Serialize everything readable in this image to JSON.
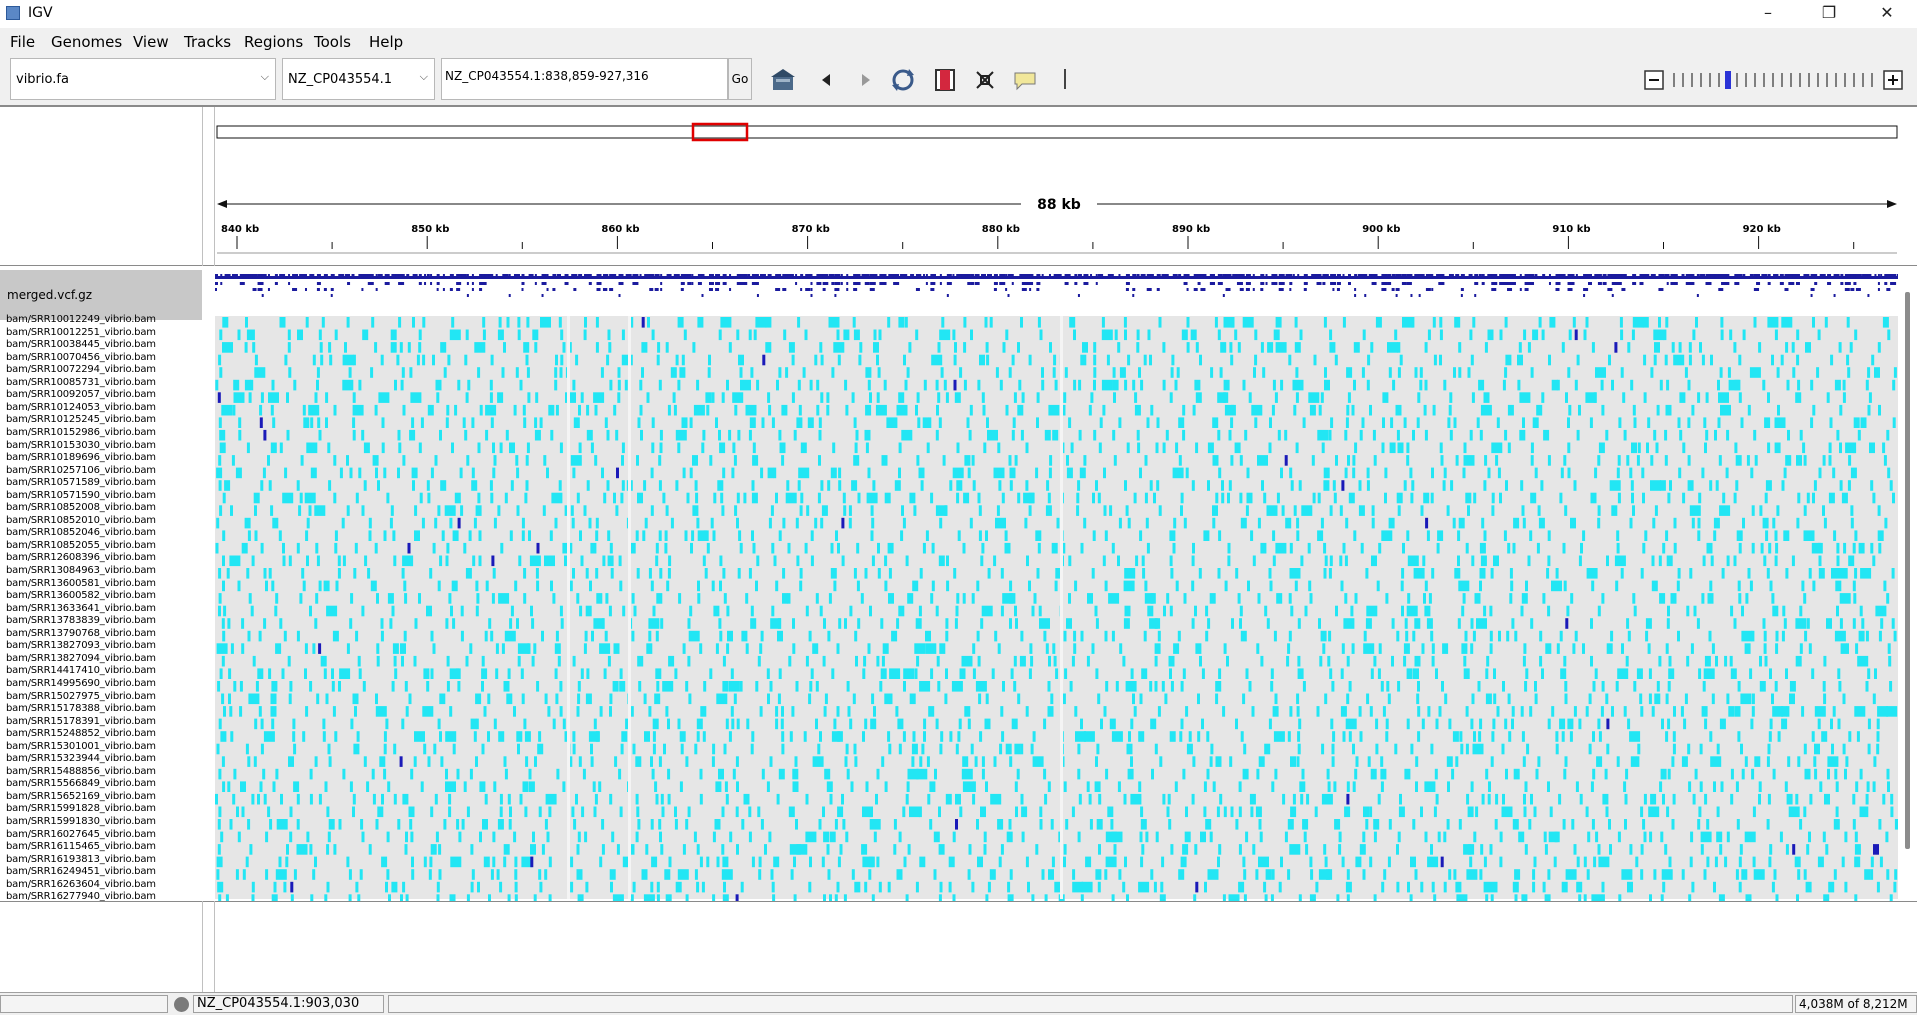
{
  "window": {
    "app_title": "IGV",
    "minimize": "–",
    "maximize": "❐",
    "close": "✕"
  },
  "menu": [
    "File",
    "Genomes",
    "View",
    "Tracks",
    "Regions",
    "Tools",
    "Help"
  ],
  "toolbar": {
    "genome": "vibrio.fa",
    "chromosome": "NZ_CP043554.1",
    "locus": "NZ_CP043554.1:838,859-927,316",
    "go_label": "Go",
    "icons": [
      "home-icon",
      "back-icon",
      "forward-icon",
      "refresh-icon",
      "region-of-interest-icon",
      "resize-icon",
      "popup-text-icon"
    ],
    "zoom_level": 0.28
  },
  "ruler": {
    "span_label": "88 kb",
    "ticks": [
      "840 kb",
      "850 kb",
      "860 kb",
      "870 kb",
      "880 kb",
      "890 kb",
      "900 kb",
      "910 kb",
      "920 kb"
    ]
  },
  "tracks": {
    "vcf_name": "merged.vcf.gz",
    "samples": [
      "bam/SRR10012249_vibrio.bam",
      "bam/SRR10012251_vibrio.bam",
      "bam/SRR10038445_vibrio.bam",
      "bam/SRR10070456_vibrio.bam",
      "bam/SRR10072294_vibrio.bam",
      "bam/SRR10085731_vibrio.bam",
      "bam/SRR10092057_vibrio.bam",
      "bam/SRR10124053_vibrio.bam",
      "bam/SRR10125245_vibrio.bam",
      "bam/SRR10152986_vibrio.bam",
      "bam/SRR10153030_vibrio.bam",
      "bam/SRR10189696_vibrio.bam",
      "bam/SRR10257106_vibrio.bam",
      "bam/SRR10571589_vibrio.bam",
      "bam/SRR10571590_vibrio.bam",
      "bam/SRR10852008_vibrio.bam",
      "bam/SRR10852010_vibrio.bam",
      "bam/SRR10852046_vibrio.bam",
      "bam/SRR10852055_vibrio.bam",
      "bam/SRR12608396_vibrio.bam",
      "bam/SRR13084963_vibrio.bam",
      "bam/SRR13600581_vibrio.bam",
      "bam/SRR13600582_vibrio.bam",
      "bam/SRR13633641_vibrio.bam",
      "bam/SRR13783839_vibrio.bam",
      "bam/SRR13790768_vibrio.bam",
      "bam/SRR13827093_vibrio.bam",
      "bam/SRR13827094_vibrio.bam",
      "bam/SRR14417410_vibrio.bam",
      "bam/SRR14995690_vibrio.bam",
      "bam/SRR15027975_vibrio.bam",
      "bam/SRR15178388_vibrio.bam",
      "bam/SRR15178391_vibrio.bam",
      "bam/SRR15248852_vibrio.bam",
      "bam/SRR15301001_vibrio.bam",
      "bam/SRR15323944_vibrio.bam",
      "bam/SRR15488856_vibrio.bam",
      "bam/SRR15566849_vibrio.bam",
      "bam/SRR15652169_vibrio.bam",
      "bam/SRR15991828_vibrio.bam",
      "bam/SRR15991830_vibrio.bam",
      "bam/SRR16027645_vibrio.bam",
      "bam/SRR16115465_vibrio.bam",
      "bam/SRR16193813_vibrio.bam",
      "bam/SRR16249451_vibrio.bam",
      "bam/SRR16263604_vibrio.bam",
      "bam/SRR16277940_vibrio.bam"
    ]
  },
  "status": {
    "position": "NZ_CP043554.1:903,030",
    "memory": "4,038M of 8,212M"
  },
  "colors": {
    "het": "#22e6f4",
    "homvar": "#1a1ab8",
    "homref": "#e6e6e6",
    "variant_site": "#1b1b9e",
    "roi": "#e00000"
  }
}
